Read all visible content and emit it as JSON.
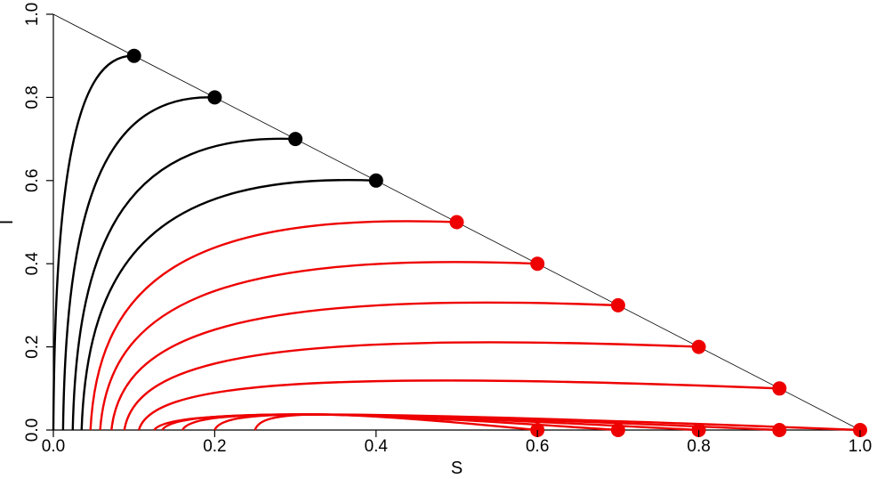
{
  "chart_data": {
    "type": "line",
    "title": "",
    "xlabel": "S",
    "ylabel": "I",
    "xlim": [
      0,
      1
    ],
    "ylim": [
      0,
      1
    ],
    "x_ticks": [
      "0.0",
      "0.2",
      "0.4",
      "0.6",
      "0.8",
      "1.0"
    ],
    "y_ticks": [
      "0.0",
      "0.2",
      "0.4",
      "0.6",
      "0.8",
      "1.0"
    ],
    "grid": false,
    "legend": "none",
    "boundary_line": {
      "from": [
        0,
        1
      ],
      "to": [
        1,
        0
      ],
      "color": "#000000"
    },
    "colors": {
      "group_a": "#000000",
      "group_b": "#ee0000",
      "axis": "#000000"
    },
    "series": [
      {
        "color": "#000000",
        "start": [
          0.1,
          0.9
        ],
        "end_s": 0.0
      },
      {
        "color": "#000000",
        "start": [
          0.2,
          0.8
        ],
        "end_s": 0.012
      },
      {
        "color": "#000000",
        "start": [
          0.3,
          0.7
        ],
        "end_s": 0.024
      },
      {
        "color": "#000000",
        "start": [
          0.4,
          0.6
        ],
        "end_s": 0.035
      },
      {
        "color": "#ee0000",
        "start": [
          0.5,
          0.5
        ],
        "end_s": 0.046
      },
      {
        "color": "#ee0000",
        "start": [
          0.6,
          0.4
        ],
        "end_s": 0.058
      },
      {
        "color": "#ee0000",
        "start": [
          0.7,
          0.3
        ],
        "end_s": 0.072
      },
      {
        "color": "#ee0000",
        "start": [
          0.8,
          0.2
        ],
        "end_s": 0.088
      },
      {
        "color": "#ee0000",
        "start": [
          0.9,
          0.1
        ],
        "end_s": 0.106
      },
      {
        "color": "#ee0000",
        "start": [
          1.0,
          0.0
        ],
        "end_s": 0.125
      },
      {
        "color": "#ee0000",
        "start": [
          0.9,
          0.0
        ],
        "end_s": 0.135
      },
      {
        "color": "#ee0000",
        "start": [
          0.8,
          0.0
        ],
        "end_s": 0.16
      },
      {
        "color": "#ee0000",
        "start": [
          0.7,
          0.0
        ],
        "end_s": 0.2
      },
      {
        "color": "#ee0000",
        "start": [
          0.6,
          0.0
        ],
        "end_s": 0.25
      }
    ]
  }
}
